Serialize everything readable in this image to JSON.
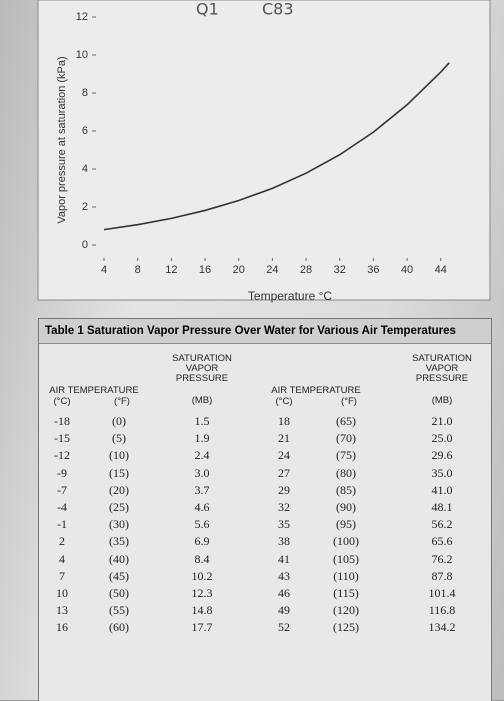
{
  "chart_data": {
    "type": "line",
    "annotations": [
      "Q1",
      "C83"
    ],
    "x_label": "Temperature °C",
    "y_label": "Vapor pressure at saturation (kPa)",
    "x": [
      4,
      8,
      12,
      16,
      20,
      24,
      28,
      32,
      36,
      40,
      44,
      45
    ],
    "series": [
      {
        "color": "#333333",
        "values": [
          0.81,
          1.07,
          1.4,
          1.82,
          2.34,
          2.98,
          3.78,
          4.75,
          5.94,
          7.38,
          9.1,
          9.59
        ]
      }
    ],
    "xlim": [
      2.5,
      47
    ],
    "xticks": [
      4,
      8,
      12,
      16,
      20,
      24,
      28,
      32,
      36,
      40,
      44
    ],
    "ylim": [
      -0.5,
      12.5
    ],
    "yticks": [
      0,
      2,
      4,
      6,
      8,
      10,
      12
    ],
    "grid": false
  },
  "table": {
    "title": "Table 1  Saturation Vapor Pressure Over Water for Various Air Temperatures",
    "header": {
      "left": {
        "air": "AIR TEMPERATURE",
        "c": "(°C)",
        "f": "(°F)",
        "pressure": "SATURATION VAPOR PRESSURE",
        "mb": "(MB)"
      },
      "right": {
        "air": "AIR TEMPERATURE",
        "c": "(°C)",
        "f": "(°F)",
        "pressure": "SATURATION VAPOR PRESSURE",
        "mb": "(MB)"
      }
    },
    "rows": [
      [
        "-18",
        "(0)",
        "1.5",
        "18",
        "(65)",
        "21.0"
      ],
      [
        "-15",
        "(5)",
        "1.9",
        "21",
        "(70)",
        "25.0"
      ],
      [
        "-12",
        "(10)",
        "2.4",
        "24",
        "(75)",
        "29.6"
      ],
      [
        "-9",
        "(15)",
        "3.0",
        "27",
        "(80)",
        "35.0"
      ],
      [
        "-7",
        "(20)",
        "3.7",
        "29",
        "(85)",
        "41.0"
      ],
      [
        "-4",
        "(25)",
        "4.6",
        "32",
        "(90)",
        "48.1"
      ],
      [
        "-1",
        "(30)",
        "5.6",
        "35",
        "(95)",
        "56.2"
      ],
      [
        "2",
        "(35)",
        "6.9",
        "38",
        "(100)",
        "65.6"
      ],
      [
        "4",
        "(40)",
        "8.4",
        "41",
        "(105)",
        "76.2"
      ],
      [
        "7",
        "(45)",
        "10.2",
        "43",
        "(110)",
        "87.8"
      ],
      [
        "10",
        "(50)",
        "12.3",
        "46",
        "(115)",
        "101.4"
      ],
      [
        "13",
        "(55)",
        "14.8",
        "49",
        "(120)",
        "116.8"
      ],
      [
        "16",
        "(60)",
        "17.7",
        "52",
        "(125)",
        "134.2"
      ]
    ]
  }
}
